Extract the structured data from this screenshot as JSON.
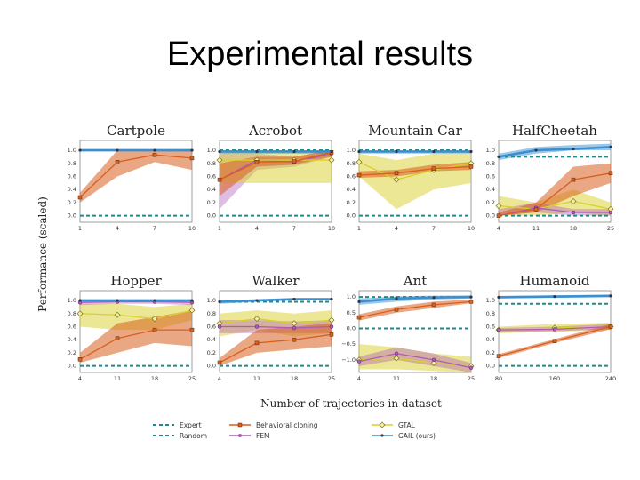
{
  "slide": {
    "title": "Experimental results"
  },
  "chart_data": {
    "type": "line",
    "ylabel": "Performance (scaled)",
    "xlabel": "Number of trajectories in dataset",
    "legend": {
      "placement": "bottom",
      "entries": [
        "Expert",
        "Random",
        "Behavioral cloning",
        "FEM",
        "GTAL",
        "GAIL (ours)"
      ]
    },
    "colors": {
      "expert": "#1f8a8a",
      "bc": "#d95f1e",
      "fem": "#b05ab8",
      "gtal": "#d9d02a",
      "gail": "#3a8fd0"
    },
    "panels": [
      {
        "title": "Cartpole",
        "x": [
          1,
          4,
          7,
          10
        ],
        "xticks": [
          "1",
          "4",
          "7",
          "10"
        ],
        "yticks": [
          "0.0",
          "0.2",
          "0.4",
          "0.6",
          "0.8",
          "1.0"
        ],
        "ylim": [
          -0.1,
          1.15
        ],
        "expert": 1.0,
        "random": 0.0,
        "series": [
          {
            "name": "Behavioral cloning",
            "values": [
              0.28,
              0.82,
              0.93,
              0.88
            ],
            "low": [
              0.2,
              0.6,
              0.82,
              0.7
            ],
            "high": [
              0.35,
              1.0,
              1.0,
              1.0
            ]
          },
          {
            "name": "GAIL (ours)",
            "values": [
              1.0,
              1.0,
              1.0,
              1.0
            ],
            "low": [
              0.98,
              0.98,
              0.98,
              0.98
            ],
            "high": [
              1.02,
              1.02,
              1.02,
              1.02
            ]
          }
        ]
      },
      {
        "title": "Acrobot",
        "x": [
          1,
          4,
          7,
          10
        ],
        "xticks": [
          "1",
          "4",
          "7",
          "10"
        ],
        "yticks": [
          "0.0",
          "0.2",
          "0.4",
          "0.6",
          "0.8",
          "1.0"
        ],
        "ylim": [
          -0.1,
          1.15
        ],
        "expert": 1.0,
        "random": 0.0,
        "series": [
          {
            "name": "FEM",
            "values": [
              0.55,
              0.85,
              0.82,
              0.95
            ],
            "low": [
              0.1,
              0.7,
              0.75,
              0.9
            ],
            "high": [
              0.95,
              0.95,
              0.9,
              1.0
            ]
          },
          {
            "name": "GTAL",
            "values": [
              0.85,
              0.85,
              0.85,
              0.85
            ],
            "low": [
              0.5,
              0.5,
              0.5,
              0.5
            ],
            "high": [
              1.0,
              1.0,
              1.0,
              1.0
            ]
          },
          {
            "name": "Behavioral cloning",
            "values": [
              0.55,
              0.82,
              0.83,
              0.97
            ],
            "low": [
              0.3,
              0.75,
              0.78,
              0.9
            ],
            "high": [
              0.8,
              0.9,
              0.9,
              1.0
            ]
          },
          {
            "name": "GAIL (ours)",
            "values": [
              0.98,
              0.98,
              0.98,
              0.98
            ],
            "low": [
              0.95,
              0.95,
              0.95,
              0.95
            ],
            "high": [
              1.0,
              1.0,
              1.0,
              1.0
            ]
          }
        ]
      },
      {
        "title": "Mountain Car",
        "x": [
          1,
          4,
          7,
          10
        ],
        "xticks": [
          "1",
          "4",
          "7",
          "10"
        ],
        "yticks": [
          "0.0",
          "0.2",
          "0.4",
          "0.6",
          "0.8",
          "1.0"
        ],
        "ylim": [
          -0.1,
          1.15
        ],
        "expert": 1.0,
        "random": 0.0,
        "series": [
          {
            "name": "GTAL",
            "values": [
              0.82,
              0.55,
              0.7,
              0.8
            ],
            "low": [
              0.6,
              0.1,
              0.4,
              0.5
            ],
            "high": [
              0.95,
              0.85,
              0.95,
              0.95
            ]
          },
          {
            "name": "Behavioral cloning",
            "values": [
              0.62,
              0.65,
              0.72,
              0.75
            ],
            "low": [
              0.58,
              0.6,
              0.68,
              0.7
            ],
            "high": [
              0.68,
              0.7,
              0.78,
              0.82
            ]
          },
          {
            "name": "GAIL (ours)",
            "values": [
              0.98,
              0.98,
              0.98,
              0.98
            ],
            "low": [
              0.95,
              0.95,
              0.95,
              0.95
            ],
            "high": [
              1.0,
              1.0,
              1.0,
              1.0
            ]
          }
        ]
      },
      {
        "title": "HalfCheetah",
        "x": [
          4,
          11,
          18,
          25
        ],
        "xticks": [
          "4",
          "11",
          "18",
          "25"
        ],
        "yticks": [
          "0.0",
          "0.2",
          "0.4",
          "0.6",
          "0.8",
          "1.0"
        ],
        "ylim": [
          -0.1,
          1.15
        ],
        "expert": 0.9,
        "random": 0.0,
        "series": [
          {
            "name": "GTAL",
            "values": [
              0.15,
              0.1,
              0.22,
              0.1
            ],
            "low": [
              0.0,
              0.0,
              0.05,
              0.0
            ],
            "high": [
              0.3,
              0.2,
              0.4,
              0.2
            ]
          },
          {
            "name": "FEM",
            "values": [
              0.0,
              0.12,
              0.05,
              0.05
            ],
            "low": [
              0.0,
              0.05,
              0.0,
              0.0
            ],
            "high": [
              0.1,
              0.2,
              0.1,
              0.1
            ]
          },
          {
            "name": "Behavioral cloning",
            "values": [
              0.0,
              0.1,
              0.55,
              0.65
            ],
            "low": [
              0.0,
              0.05,
              0.3,
              0.5
            ],
            "high": [
              0.05,
              0.2,
              0.75,
              0.8
            ]
          },
          {
            "name": "GAIL (ours)",
            "values": [
              0.9,
              1.0,
              1.02,
              1.05
            ],
            "low": [
              0.85,
              0.95,
              1.0,
              1.0
            ],
            "high": [
              0.95,
              1.05,
              1.08,
              1.1
            ]
          }
        ]
      },
      {
        "title": "Hopper",
        "x": [
          4,
          11,
          18,
          25
        ],
        "xticks": [
          "4",
          "11",
          "18",
          "25"
        ],
        "yticks": [
          "0.0",
          "0.2",
          "0.4",
          "0.6",
          "0.8",
          "1.0"
        ],
        "ylim": [
          -0.1,
          1.15
        ],
        "expert": 1.0,
        "random": 0.0,
        "series": [
          {
            "name": "GTAL",
            "values": [
              0.8,
              0.78,
              0.72,
              0.85
            ],
            "low": [
              0.6,
              0.55,
              0.55,
              0.7
            ],
            "high": [
              0.95,
              0.95,
              0.9,
              0.95
            ]
          },
          {
            "name": "FEM",
            "values": [
              0.97,
              0.98,
              0.98,
              0.97
            ],
            "low": [
              0.93,
              0.95,
              0.95,
              0.93
            ],
            "high": [
              1.0,
              1.0,
              1.0,
              1.0
            ]
          },
          {
            "name": "Behavioral cloning",
            "values": [
              0.1,
              0.42,
              0.55,
              0.55
            ],
            "low": [
              0.05,
              0.2,
              0.35,
              0.3
            ],
            "high": [
              0.2,
              0.65,
              0.75,
              0.85
            ]
          },
          {
            "name": "GAIL (ours)",
            "values": [
              1.0,
              1.0,
              1.0,
              1.0
            ],
            "low": [
              0.98,
              0.98,
              0.98,
              0.98
            ],
            "high": [
              1.02,
              1.02,
              1.02,
              1.02
            ]
          }
        ]
      },
      {
        "title": "Walker",
        "x": [
          4,
          11,
          18,
          25
        ],
        "xticks": [
          "4",
          "11",
          "18",
          "25"
        ],
        "yticks": [
          "0.0",
          "0.2",
          "0.4",
          "0.6",
          "0.8",
          "1.0"
        ],
        "ylim": [
          -0.1,
          1.15
        ],
        "expert": 0.98,
        "random": 0.0,
        "series": [
          {
            "name": "GTAL",
            "values": [
              0.65,
              0.72,
              0.65,
              0.7
            ],
            "low": [
              0.45,
              0.55,
              0.45,
              0.5
            ],
            "high": [
              0.8,
              0.85,
              0.8,
              0.85
            ]
          },
          {
            "name": "FEM",
            "values": [
              0.6,
              0.6,
              0.58,
              0.6
            ],
            "low": [
              0.5,
              0.5,
              0.5,
              0.5
            ],
            "high": [
              0.7,
              0.7,
              0.68,
              0.7
            ]
          },
          {
            "name": "Behavioral cloning",
            "values": [
              0.05,
              0.35,
              0.4,
              0.48
            ],
            "low": [
              0.0,
              0.2,
              0.25,
              0.3
            ],
            "high": [
              0.12,
              0.55,
              0.6,
              0.65
            ]
          },
          {
            "name": "GAIL (ours)",
            "values": [
              0.98,
              1.0,
              1.02,
              1.02
            ],
            "low": [
              0.95,
              0.98,
              1.0,
              1.0
            ],
            "high": [
              1.0,
              1.02,
              1.04,
              1.04
            ]
          }
        ]
      },
      {
        "title": "Ant",
        "x": [
          4,
          11,
          18,
          25
        ],
        "xticks": [
          "4",
          "11",
          "18",
          "25"
        ],
        "yticks": [
          "−1.0",
          "−0.5",
          "0.0",
          "0.5",
          "1.0"
        ],
        "ylim": [
          -1.4,
          1.2
        ],
        "expert": 1.0,
        "random": 0.0,
        "series": [
          {
            "name": "GTAL",
            "values": [
              -1.0,
              -0.95,
              -1.1,
              -1.2
            ],
            "low": [
              -1.3,
              -1.3,
              -1.35,
              -1.4
            ],
            "high": [
              -0.5,
              -0.6,
              -0.8,
              -0.9
            ]
          },
          {
            "name": "FEM",
            "values": [
              -1.05,
              -0.8,
              -1.0,
              -1.25
            ],
            "low": [
              -1.2,
              -1.0,
              -1.2,
              -1.4
            ],
            "high": [
              -0.9,
              -0.6,
              -0.8,
              -1.1
            ]
          },
          {
            "name": "Behavioral cloning",
            "values": [
              0.35,
              0.6,
              0.75,
              0.85
            ],
            "low": [
              0.25,
              0.5,
              0.65,
              0.8
            ],
            "high": [
              0.45,
              0.7,
              0.85,
              0.92
            ]
          },
          {
            "name": "GAIL (ours)",
            "values": [
              0.85,
              0.95,
              0.98,
              1.0
            ],
            "low": [
              0.75,
              0.85,
              0.92,
              0.95
            ],
            "high": [
              0.95,
              1.02,
              1.04,
              1.05
            ]
          }
        ]
      },
      {
        "title": "Humanoid",
        "x": [
          80,
          160,
          240
        ],
        "xticks": [
          "80",
          "160",
          "240"
        ],
        "yticks": [
          "0.0",
          "0.2",
          "0.4",
          "0.6",
          "0.8",
          "1.0"
        ],
        "ylim": [
          -0.1,
          1.15
        ],
        "expert": 0.95,
        "random": 0.0,
        "series": [
          {
            "name": "GTAL",
            "values": [
              0.55,
              0.58,
              0.6
            ],
            "low": [
              0.5,
              0.52,
              0.55
            ],
            "high": [
              0.6,
              0.64,
              0.66
            ]
          },
          {
            "name": "FEM",
            "values": [
              0.55,
              0.56,
              0.6
            ],
            "low": [
              0.52,
              0.53,
              0.56
            ],
            "high": [
              0.58,
              0.6,
              0.64
            ]
          },
          {
            "name": "Behavioral cloning",
            "values": [
              0.15,
              0.38,
              0.6
            ],
            "low": [
              0.12,
              0.35,
              0.56
            ],
            "high": [
              0.18,
              0.41,
              0.64
            ]
          },
          {
            "name": "GAIL (ours)",
            "values": [
              1.05,
              1.06,
              1.07
            ],
            "low": [
              1.03,
              1.04,
              1.05
            ],
            "high": [
              1.07,
              1.08,
              1.09
            ]
          }
        ]
      }
    ]
  }
}
